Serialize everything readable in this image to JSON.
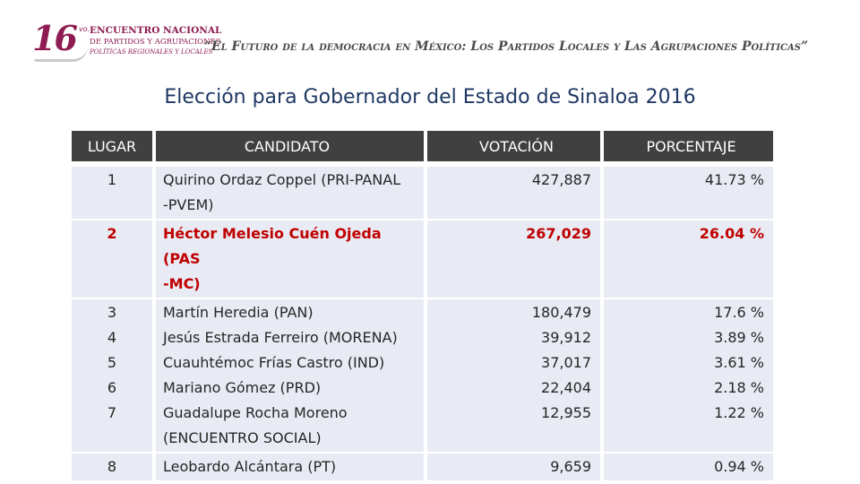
{
  "header": {
    "logo": {
      "number": "16",
      "ordinal": "vo.",
      "line1": "ENCUENTRO NACIONAL",
      "line2": "DE PARTIDOS Y AGRUPACIONES",
      "line3": "POLÍTICAS REGIONALES Y LOCALES"
    },
    "subtitle": "“El Futuro de la democracia en México: Los Partidos Locales y Las Agrupaciones Políticas”"
  },
  "title": "Elección para Gobernador del Estado de Sinaloa 2016",
  "table": {
    "headers": {
      "lugar": "LUGAR",
      "candidato": "CANDIDATO",
      "votacion": "VOTACIÓN",
      "porcentaje": "PORCENTAJE"
    },
    "groups": [
      {
        "lugares": [
          "1"
        ],
        "candidatos": [
          "Quirino Ordaz Coppel (PRI-PANAL",
          "-PVEM)"
        ],
        "votos": [
          "427,887"
        ],
        "porcentajes": [
          "41.73 %"
        ],
        "highlight": false
      },
      {
        "lugares": [
          "2"
        ],
        "candidatos": [
          "Héctor Melesio Cuén Ojeda (PAS",
          "-MC)"
        ],
        "votos": [
          "267,029"
        ],
        "porcentajes": [
          "26.04 %"
        ],
        "highlight": true
      },
      {
        "lugares": [
          "3",
          "4",
          "5",
          "6",
          "7"
        ],
        "candidatos": [
          "Martín Heredia (PAN)",
          "Jesús Estrada Ferreiro (MORENA)",
          "Cuauhtémoc Frías Castro (IND)",
          "Mariano Gómez (PRD)",
          "Guadalupe Rocha Moreno",
          "(ENCUENTRO SOCIAL)"
        ],
        "votos": [
          "180,479",
          "39,912",
          "37,017",
          "22,404",
          "12,955"
        ],
        "porcentajes": [
          "17.6 %",
          "3.89 %",
          "3.61 %",
          "2.18 %",
          "1.22 %"
        ],
        "highlight": false
      },
      {
        "lugares": [
          "8"
        ],
        "candidatos": [
          "Leobardo Alcántara (PT)"
        ],
        "votos": [
          "9,659"
        ],
        "porcentajes": [
          "0.94 %"
        ],
        "highlight": false
      }
    ]
  }
}
